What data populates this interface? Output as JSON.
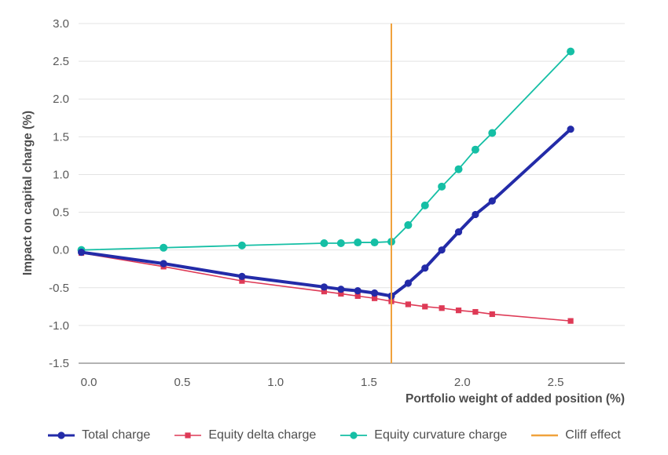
{
  "chart_data": {
    "type": "line",
    "title": "",
    "xlabel": "Portfolio weight of added position (%)",
    "ylabel": "Impact on capital charge (%)",
    "xlim": [
      -0.055,
      2.87
    ],
    "ylim": [
      -1.5,
      3.0
    ],
    "x_ticks": [
      0.0,
      0.5,
      1.0,
      1.5,
      2.0,
      2.5
    ],
    "y_ticks": [
      3.0,
      2.5,
      2.0,
      1.5,
      1.0,
      0.5,
      0.0,
      -0.5,
      -1.0,
      -1.5
    ],
    "grid": "horizontal-only",
    "legend_position": "bottom",
    "x": [
      -0.04,
      0.4,
      0.82,
      1.26,
      1.35,
      1.44,
      1.53,
      1.62,
      1.71,
      1.8,
      1.89,
      1.98,
      2.07,
      2.16,
      2.58
    ],
    "series": [
      {
        "name": "Total charge",
        "color": "#232ba8",
        "marker": "circle",
        "marker_size": 4.6,
        "line_width": 4,
        "values": [
          -0.03,
          -0.18,
          -0.35,
          -0.49,
          -0.52,
          -0.54,
          -0.57,
          -0.61,
          -0.44,
          -0.24,
          0.0,
          0.24,
          0.47,
          0.65,
          1.6
        ]
      },
      {
        "name": "Equity delta charge",
        "color": "#de3a56",
        "marker": "square",
        "marker_size": 3.6,
        "line_width": 1.6,
        "values": [
          -0.04,
          -0.22,
          -0.41,
          -0.55,
          -0.58,
          -0.61,
          -0.64,
          -0.68,
          -0.72,
          -0.75,
          -0.77,
          -0.8,
          -0.82,
          -0.85,
          -0.94
        ]
      },
      {
        "name": "Equity curvature charge",
        "color": "#15bfa5",
        "marker": "circle",
        "marker_size": 5.0,
        "line_width": 1.8,
        "values": [
          0.0,
          0.03,
          0.06,
          0.09,
          0.09,
          0.1,
          0.1,
          0.11,
          0.33,
          0.59,
          0.84,
          1.07,
          1.33,
          1.55,
          2.63
        ]
      }
    ],
    "vline": {
      "name": "Cliff effect",
      "x": 1.62,
      "color": "#f0a23c",
      "line_width": 2
    }
  },
  "colors": {
    "background": "#ffffff",
    "gridline": "#e3e3e3",
    "axis_line": "#9a9a9a",
    "tick_text": "#595959",
    "axis_title_text": "#4d4d4d",
    "legend_text": "#4f4f4f"
  }
}
